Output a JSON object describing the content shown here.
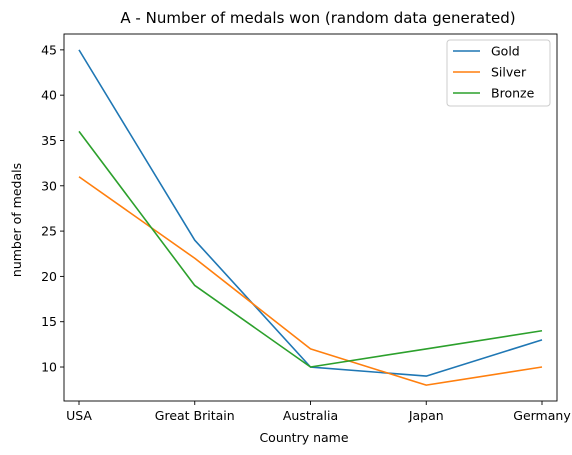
{
  "chart_data": {
    "type": "line",
    "title": "A - Number of medals won (random data generated)",
    "xlabel": "Country name",
    "ylabel": "number of medals",
    "categories": [
      "USA",
      "Great Britain",
      "Australia",
      "Japan",
      "Germany"
    ],
    "yticks": [
      10,
      15,
      20,
      25,
      30,
      35,
      40,
      45
    ],
    "ylim": [
      6.25,
      46.75
    ],
    "grid": false,
    "legend_position": "top-right",
    "series": [
      {
        "name": "Gold",
        "color": "#1f77b4",
        "values": [
          45,
          24,
          10,
          9,
          13
        ]
      },
      {
        "name": "Silver",
        "color": "#ff7f0e",
        "values": [
          31,
          22,
          12,
          8,
          10
        ]
      },
      {
        "name": "Bronze",
        "color": "#2ca02c",
        "values": [
          36,
          19,
          10,
          12,
          14
        ]
      }
    ]
  }
}
